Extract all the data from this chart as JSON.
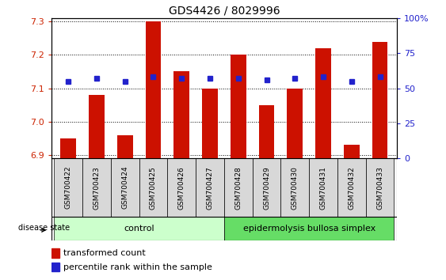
{
  "title": "GDS4426 / 8029996",
  "samples": [
    "GSM700422",
    "GSM700423",
    "GSM700424",
    "GSM700425",
    "GSM700426",
    "GSM700427",
    "GSM700428",
    "GSM700429",
    "GSM700430",
    "GSM700431",
    "GSM700432",
    "GSM700433"
  ],
  "transformed_count": [
    6.95,
    7.08,
    6.96,
    7.3,
    7.15,
    7.1,
    7.2,
    7.05,
    7.1,
    7.22,
    6.93,
    7.24
  ],
  "percentile_rank": [
    55,
    57,
    55,
    58,
    57,
    57,
    57,
    56,
    57,
    58,
    55,
    58
  ],
  "ylim_left": [
    6.89,
    7.31
  ],
  "ylim_right": [
    0,
    100
  ],
  "yticks_left": [
    6.9,
    7.0,
    7.1,
    7.2,
    7.3
  ],
  "yticks_right": [
    0,
    25,
    50,
    75,
    100
  ],
  "ytick_labels_right": [
    "0",
    "25",
    "50",
    "75",
    "100%"
  ],
  "bar_color": "#cc1100",
  "dot_color": "#2222cc",
  "bar_bottom": 6.89,
  "control_label": "control",
  "ebs_label": "epidermolysis bullosa simplex",
  "disease_state_label": "disease state",
  "control_color": "#ccffcc",
  "ebs_color": "#66dd66",
  "legend_bar_label": "transformed count",
  "legend_dot_label": "percentile rank within the sample",
  "tick_color_left": "#cc2200",
  "tick_color_right": "#2222cc",
  "label_box_color": "#d8d8d8"
}
